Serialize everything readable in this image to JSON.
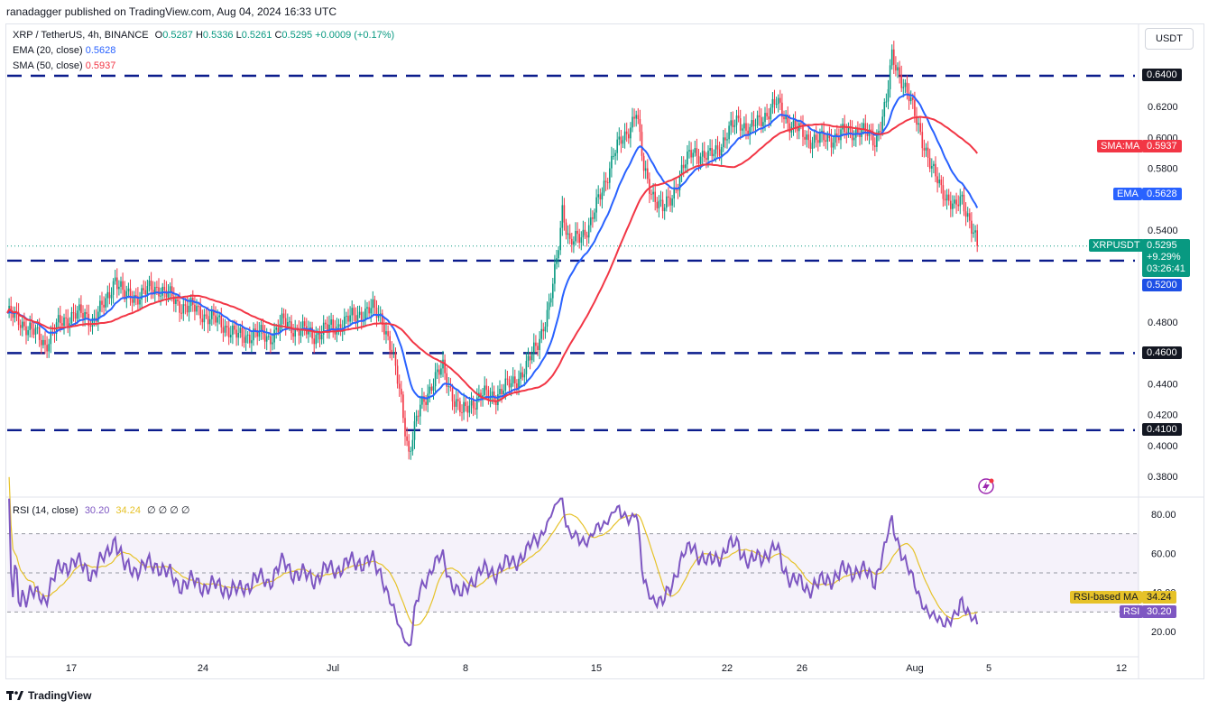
{
  "header": {
    "published": "ranadagger published on TradingView.com, Aug 04, 2024 16:33 UTC"
  },
  "legend": {
    "symbol": "XRP / TetherUS, 4h, BINANCE",
    "o_label": "O",
    "o": "0.5287",
    "h_label": "H",
    "h": "0.5336",
    "l_label": "L",
    "l": "0.5261",
    "c_label": "C",
    "c": "0.5295",
    "change": "+0.0009 (+0.17%)",
    "ema_label": "EMA (20, close)",
    "ema_value": "0.5628",
    "sma_label": "SMA (50, close)",
    "sma_value": "0.5937"
  },
  "currency_button": "USDT",
  "price_labels": {
    "l_0640": "0.6400",
    "l_0520": "0.5200",
    "l_0460": "0.4600",
    "l_0410": "0.4100",
    "sma_tag": "SMA:MA",
    "sma_val": "0.5937",
    "ema_tag": "EMA",
    "ema_val": "0.5628",
    "sym_tag": "XRPUSDT",
    "sym_val": "0.5295",
    "sym_change": "+9.29%",
    "sym_timer": "03:26:41"
  },
  "rsi_legend": {
    "label": "RSI (14, close)",
    "rsi": "30.20",
    "ma": "34.24",
    "extra": "∅ ∅ ∅ ∅"
  },
  "rsi_labels": {
    "ma_tag": "RSI-based MA",
    "ma_val": "34.24",
    "rsi_tag": "RSI",
    "rsi_val": "30.20"
  },
  "footer": {
    "brand": "TradingView"
  },
  "colors": {
    "up": "#089981",
    "down": "#f23645",
    "ema": "#2962ff",
    "sma": "#f23645",
    "levels": "#0b1c8c",
    "rsi": "#7e57c2",
    "rsi_ma": "#e6c229"
  },
  "chart_data": [
    {
      "type": "candlestick",
      "title": "XRP / TetherUS, 4h, BINANCE",
      "ylim": [
        0.37,
        0.68
      ],
      "y_ticks": [
        "0.6400",
        "0.6200",
        "0.6000",
        "0.5800",
        "0.5400",
        "0.4800",
        "0.4600",
        "0.4400",
        "0.4200",
        "0.4100",
        "0.4000",
        "0.3800"
      ],
      "x_ticks": [
        "17",
        "24",
        "Jul",
        "8",
        "15",
        "22",
        "26",
        "Aug",
        "5",
        "12"
      ],
      "horizontal_levels": [
        0.64,
        0.52,
        0.46,
        0.41
      ],
      "close_series": {
        "name": "XRPUSDT",
        "knots": [
          [
            0,
            0.486
          ],
          [
            10,
            0.478
          ],
          [
            20,
            0.466
          ],
          [
            27,
            0.478
          ],
          [
            35,
            0.486
          ],
          [
            45,
            0.482
          ],
          [
            52,
            0.492
          ],
          [
            57,
            0.51
          ],
          [
            62,
            0.496
          ],
          [
            70,
            0.498
          ],
          [
            80,
            0.503
          ],
          [
            90,
            0.492
          ],
          [
            100,
            0.488
          ],
          [
            108,
            0.482
          ],
          [
            115,
            0.478
          ],
          [
            122,
            0.47
          ],
          [
            130,
            0.473
          ],
          [
            138,
            0.47
          ],
          [
            146,
            0.48
          ],
          [
            154,
            0.475
          ],
          [
            162,
            0.472
          ],
          [
            170,
            0.476
          ],
          [
            178,
            0.48
          ],
          [
            186,
            0.486
          ],
          [
            193,
            0.488
          ],
          [
            198,
            0.483
          ],
          [
            203,
            0.46
          ],
          [
            208,
            0.43
          ],
          [
            212,
            0.395
          ],
          [
            214,
            0.405
          ],
          [
            218,
            0.425
          ],
          [
            224,
            0.44
          ],
          [
            230,
            0.45
          ],
          [
            236,
            0.43
          ],
          [
            240,
            0.42
          ],
          [
            244,
            0.427
          ],
          [
            250,
            0.432
          ],
          [
            258,
            0.433
          ],
          [
            266,
            0.44
          ],
          [
            274,
            0.45
          ],
          [
            280,
            0.468
          ],
          [
            286,
            0.488
          ],
          [
            290,
            0.52
          ],
          [
            293,
            0.555
          ],
          [
            297,
            0.53
          ],
          [
            302,
            0.535
          ],
          [
            308,
            0.545
          ],
          [
            314,
            0.565
          ],
          [
            320,
            0.59
          ],
          [
            326,
            0.6
          ],
          [
            332,
            0.618
          ],
          [
            336,
            0.578
          ],
          [
            340,
            0.566
          ],
          [
            346,
            0.552
          ],
          [
            350,
            0.56
          ],
          [
            356,
            0.578
          ],
          [
            362,
            0.592
          ],
          [
            370,
            0.586
          ],
          [
            378,
            0.598
          ],
          [
            386,
            0.612
          ],
          [
            392,
            0.604
          ],
          [
            400,
            0.615
          ],
          [
            406,
            0.622
          ],
          [
            414,
            0.608
          ],
          [
            422,
            0.6
          ],
          [
            430,
            0.598
          ],
          [
            440,
            0.602
          ],
          [
            450,
            0.605
          ],
          [
            458,
            0.598
          ],
          [
            464,
            0.622
          ],
          [
            467,
            0.652
          ],
          [
            471,
            0.642
          ],
          [
            476,
            0.625
          ],
          [
            482,
            0.604
          ],
          [
            488,
            0.578
          ],
          [
            494,
            0.566
          ],
          [
            500,
            0.553
          ],
          [
            504,
            0.56
          ],
          [
            508,
            0.547
          ],
          [
            512,
            0.5295
          ]
        ],
        "count": 513
      },
      "ema_20": {
        "name": "EMA (20, close)",
        "last": 0.5628
      },
      "sma_50": {
        "name": "SMA (50, close)",
        "last": 0.5937
      }
    },
    {
      "type": "line",
      "title": "RSI (14, close)",
      "ylim": [
        10,
        90
      ],
      "y_ticks": [
        "80.00",
        "60.00",
        "40.00",
        "20.00"
      ],
      "band": [
        30,
        70
      ],
      "series": [
        {
          "name": "RSI",
          "last": 30.2
        },
        {
          "name": "RSI-based MA",
          "last": 34.24
        }
      ]
    }
  ]
}
